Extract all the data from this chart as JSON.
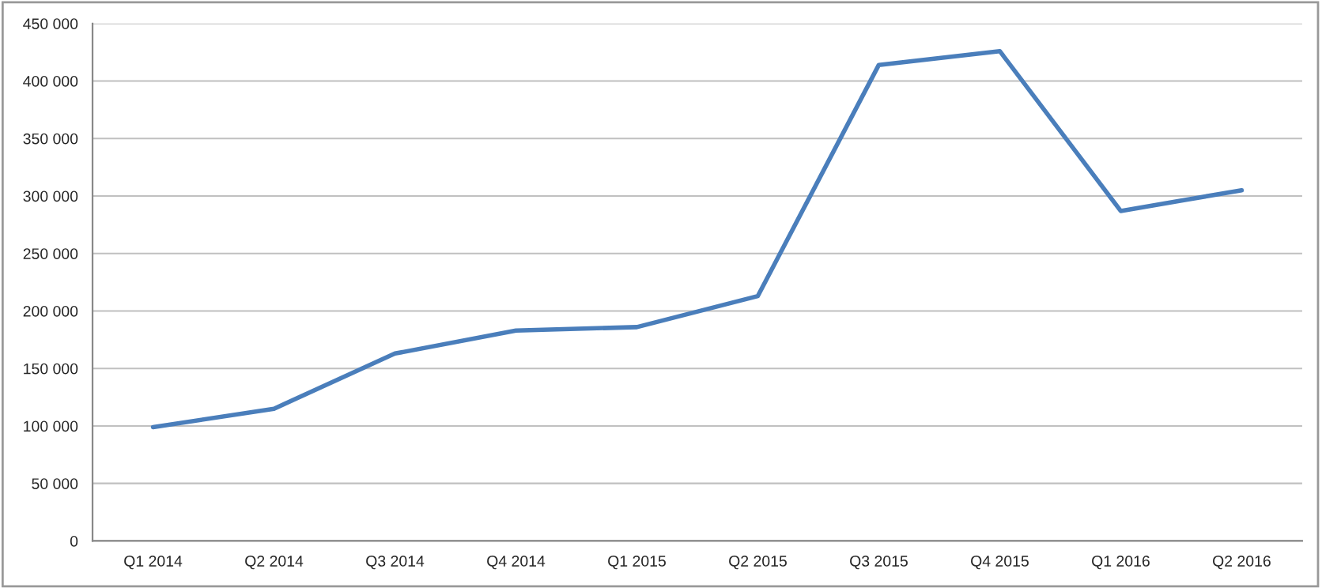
{
  "chart_data": {
    "type": "line",
    "categories": [
      "Q1 2014",
      "Q2 2014",
      "Q3 2014",
      "Q4 2014",
      "Q1 2015",
      "Q2 2015",
      "Q3 2015",
      "Q4 2015",
      "Q1 2016",
      "Q2 2016"
    ],
    "series": [
      {
        "color": "#4a7ebb",
        "values": [
          99000,
          115000,
          163000,
          183000,
          186000,
          213000,
          414000,
          426000,
          287000,
          305000
        ]
      }
    ],
    "ylim": [
      0,
      450000
    ],
    "yticks": [
      0,
      {
        "value": 50000,
        "label": "50 000"
      },
      {
        "value": 100000,
        "label": "100 000"
      },
      {
        "value": 150000,
        "label": "150 000"
      },
      {
        "value": 200000,
        "label": "200 000"
      },
      {
        "value": 250000,
        "label": "250 000"
      },
      {
        "value": 300000,
        "label": "300 000"
      },
      {
        "value": 350000,
        "label": "350 000"
      },
      {
        "value": 400000,
        "label": "400 000"
      },
      {
        "value": 450000,
        "label": "450 000"
      }
    ],
    "grid": "y",
    "marker": "none",
    "line_style": "solid"
  }
}
